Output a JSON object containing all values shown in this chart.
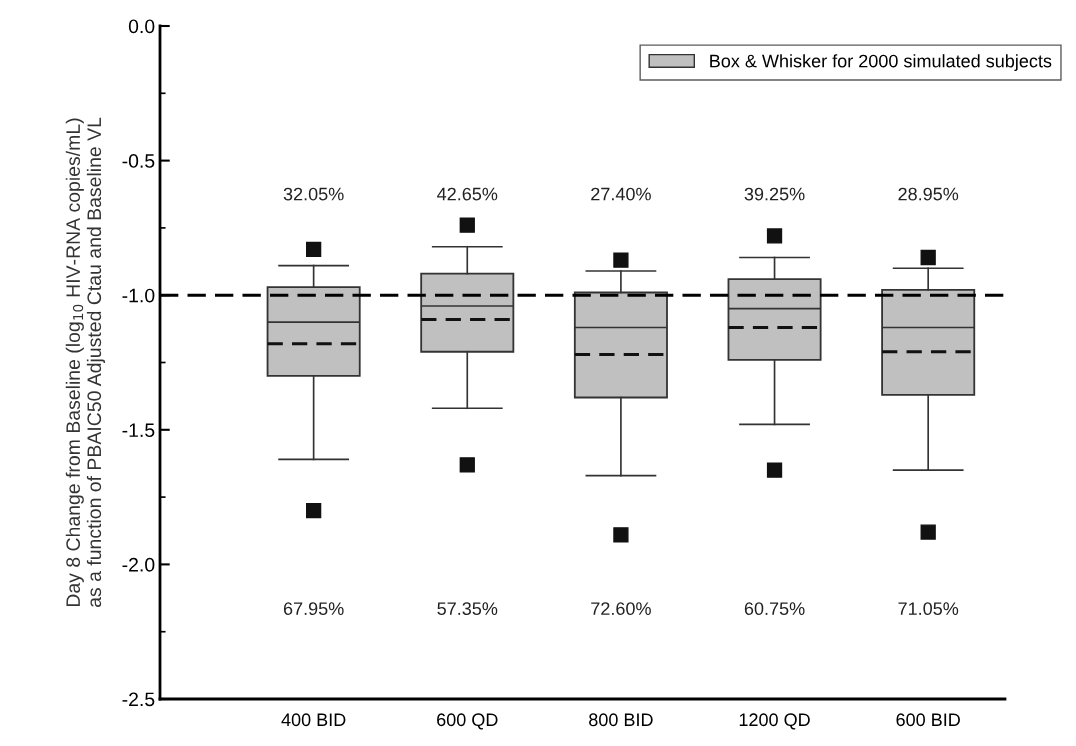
{
  "chart_data": {
    "type": "box",
    "ylabel": "Day 8 Change from Baseline (log$_{10}$ HIV-RNA copies/mL)\nas a function of PBAIC50 Adjusted Ctau and Baseline VL",
    "categories": [
      "400 BID",
      "600 QD",
      "800 BID",
      "1200 QD",
      "600 BID"
    ],
    "series": [
      {
        "name": "Box & Whisker for 2000 simulated subjects",
        "color": "#c0c0c0",
        "boxes": [
          {
            "low": -1.61,
            "q1": -1.3,
            "median": -1.1,
            "q3": -0.97,
            "high": -0.89,
            "mean": -1.18,
            "outliers": [
              -0.83,
              -1.8
            ]
          },
          {
            "low": -1.42,
            "q1": -1.21,
            "median": -1.04,
            "q3": -0.92,
            "high": -0.82,
            "mean": -1.09,
            "outliers": [
              -0.74,
              -1.63
            ]
          },
          {
            "low": -1.67,
            "q1": -1.38,
            "median": -1.12,
            "q3": -0.99,
            "high": -0.91,
            "mean": -1.22,
            "outliers": [
              -0.87,
              -1.89
            ]
          },
          {
            "low": -1.48,
            "q1": -1.24,
            "median": -1.05,
            "q3": -0.94,
            "high": -0.86,
            "mean": -1.12,
            "outliers": [
              -0.78,
              -1.65
            ]
          },
          {
            "low": -1.65,
            "q1": -1.37,
            "median": -1.12,
            "q3": -0.98,
            "high": -0.9,
            "mean": -1.21,
            "outliers": [
              -0.86,
              -1.88
            ]
          }
        ]
      }
    ],
    "ylim": [
      -2.5,
      0.0
    ],
    "yticks": [
      {
        "value": -2.5,
        "label": "-2.5"
      },
      {
        "value": -2.0,
        "label": "-2.0"
      },
      {
        "value": -1.5,
        "label": "-1.5"
      },
      {
        "value": -1.0,
        "label": "-1.0"
      },
      {
        "value": -0.5,
        "label": "-0.5"
      },
      {
        "value": 0.0,
        "label": "0.0"
      }
    ],
    "ref_lines": [
      {
        "axis": "y",
        "value": -1.0,
        "line_style": "dashed",
        "color": "#000000"
      }
    ],
    "annotations": [
      "32.05%",
      "42.65%",
      "27.40%",
      "39.25%",
      "28.95%",
      "67.95%",
      "57.35%",
      "72.60%",
      "60.75%",
      "71.05%"
    ],
    "legend": "top right",
    "grid": false,
    "marker": "square"
  }
}
